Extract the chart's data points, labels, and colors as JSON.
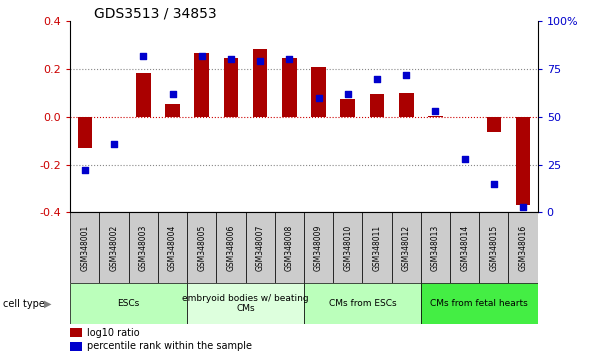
{
  "title": "GDS3513 / 34853",
  "samples": [
    "GSM348001",
    "GSM348002",
    "GSM348003",
    "GSM348004",
    "GSM348005",
    "GSM348006",
    "GSM348007",
    "GSM348008",
    "GSM348009",
    "GSM348010",
    "GSM348011",
    "GSM348012",
    "GSM348013",
    "GSM348014",
    "GSM348015",
    "GSM348016"
  ],
  "log10_ratio": [
    -0.13,
    0.0,
    0.185,
    0.055,
    0.265,
    0.245,
    0.285,
    0.245,
    0.21,
    0.075,
    0.095,
    0.1,
    0.005,
    0.0,
    -0.065,
    -0.37
  ],
  "percentile_rank": [
    22,
    36,
    82,
    62,
    82,
    80,
    79,
    80,
    60,
    62,
    70,
    72,
    53,
    28,
    15,
    3
  ],
  "cell_type_groups": [
    {
      "label": "ESCs",
      "start": 0,
      "end": 3,
      "color": "#bbffbb"
    },
    {
      "label": "embryoid bodies w/ beating\nCMs",
      "start": 4,
      "end": 7,
      "color": "#ddffdd"
    },
    {
      "label": "CMs from ESCs",
      "start": 8,
      "end": 11,
      "color": "#bbffbb"
    },
    {
      "label": "CMs from fetal hearts",
      "start": 12,
      "end": 15,
      "color": "#44ee44"
    }
  ],
  "bar_color": "#aa0000",
  "dot_color": "#0000cc",
  "ylim_left": [
    -0.4,
    0.4
  ],
  "ylim_right": [
    0,
    100
  ],
  "yticks_left": [
    -0.4,
    -0.2,
    0.0,
    0.2,
    0.4
  ],
  "yticks_right": [
    0,
    25,
    50,
    75,
    100
  ],
  "hline_color": "#cc0000",
  "dotted_color": "#888888",
  "background_color": "#ffffff",
  "label_bg": "#cccccc",
  "bar_width": 0.5
}
